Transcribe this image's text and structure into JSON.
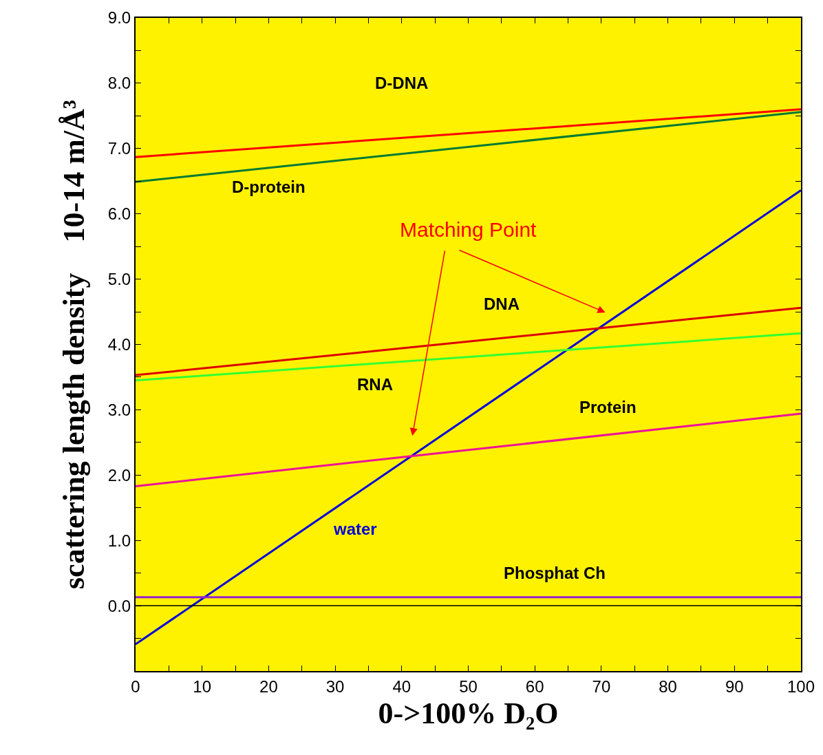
{
  "chart_data": {
    "type": "line",
    "xlabel": "0->100% D₂O",
    "ylabel": "scattering length density    10-14 m/Å³",
    "x": [
      0,
      100
    ],
    "series": [
      {
        "name": "D-DNA",
        "color": "#ff0000",
        "values": [
          6.87,
          7.6
        ]
      },
      {
        "name": "D-protein",
        "color": "#007a33",
        "values": [
          6.49,
          7.56
        ]
      },
      {
        "name": "water",
        "color": "#0000dd",
        "values": [
          -0.59,
          6.36
        ]
      },
      {
        "name": "DNA",
        "color": "#dd0000",
        "values": [
          3.53,
          4.56
        ]
      },
      {
        "name": "RNA",
        "color": "#33ff33",
        "values": [
          3.45,
          4.17
        ]
      },
      {
        "name": "Protein",
        "color": "#ee1199",
        "values": [
          1.83,
          2.94
        ]
      },
      {
        "name": "Phosphat Ch",
        "color": "#9922cc",
        "values": [
          0.13,
          0.13
        ]
      }
    ],
    "xlim": [
      0,
      100
    ],
    "ylim": [
      -1,
      9
    ],
    "xticks": [
      0,
      {
        "value": 5,
        "label": null
      },
      10,
      {
        "value": 15,
        "label": null
      },
      20,
      {
        "value": 25,
        "label": null
      },
      30,
      {
        "value": 35,
        "label": null
      },
      40,
      {
        "value": 45,
        "label": null
      },
      50,
      {
        "value": 55,
        "label": null
      },
      60,
      {
        "value": 65,
        "label": null
      },
      70,
      {
        "value": 75,
        "label": null
      },
      80,
      {
        "value": 85,
        "label": null
      },
      90,
      {
        "value": 95,
        "label": null
      },
      100
    ],
    "yticks": [
      {
        "value": -0.5,
        "label": null
      },
      {
        "value": 0,
        "label": "0.0"
      },
      {
        "value": 0.5,
        "label": null
      },
      {
        "value": 1,
        "label": "1.0"
      },
      {
        "value": 1.5,
        "label": null
      },
      {
        "value": 2,
        "label": "2.0"
      },
      {
        "value": 2.5,
        "label": null
      },
      {
        "value": 3,
        "label": "3.0"
      },
      {
        "value": 3.5,
        "label": null
      },
      {
        "value": 4,
        "label": "4.0"
      },
      {
        "value": 4.5,
        "label": null
      },
      {
        "value": 5,
        "label": "5.0"
      },
      {
        "value": 5.5,
        "label": null
      },
      {
        "value": 6,
        "label": "6.0"
      },
      {
        "value": 6.5,
        "label": null
      },
      {
        "value": 7,
        "label": "7.0"
      },
      {
        "value": 7.5,
        "label": null
      },
      {
        "value": 8,
        "label": "8.0"
      },
      {
        "value": 8.5,
        "label": null
      },
      {
        "value": 9,
        "label": "9.0"
      }
    ],
    "ref_lines": [
      {
        "axis": "y",
        "value": 0,
        "color": "#000000"
      }
    ],
    "annotations": [
      "Matching Point"
    ],
    "grid": false,
    "legend": false,
    "marker": "none",
    "line_style": "solid"
  }
}
